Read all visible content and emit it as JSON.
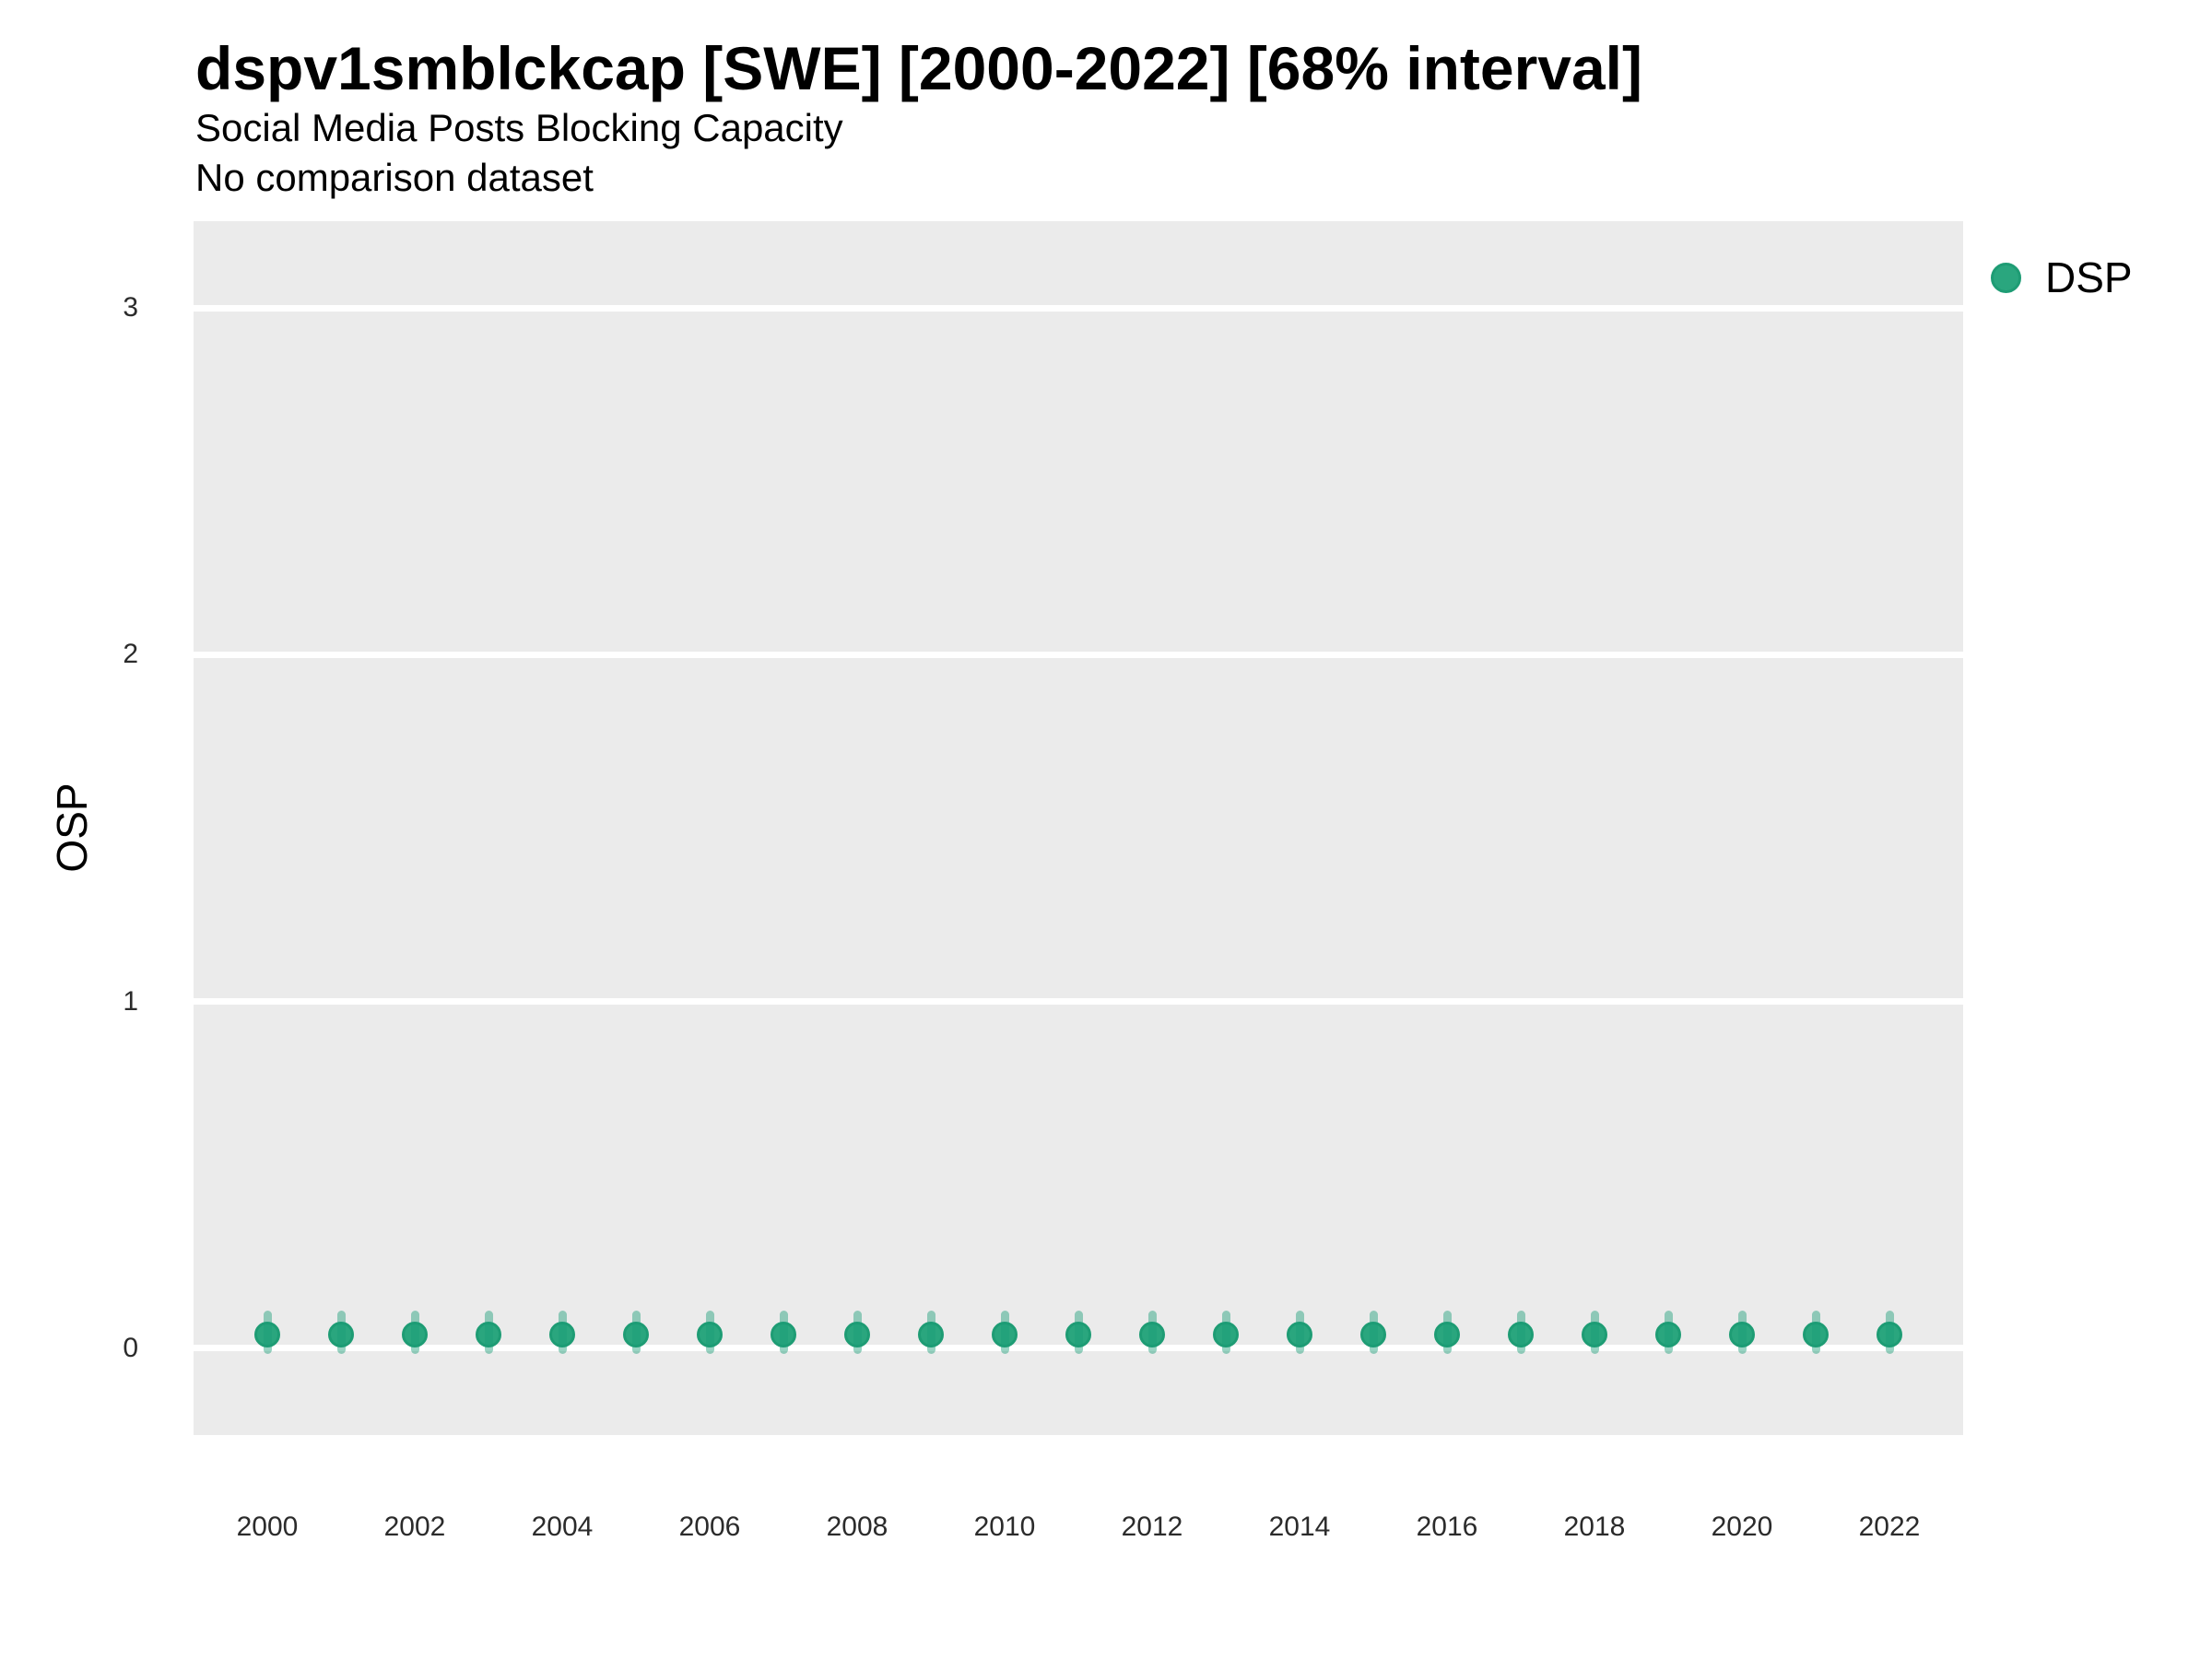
{
  "header": {
    "title": "dspv1smblckcap [SWE] [2000-2022] [68% interval]",
    "subtitle": "Social Media Posts Blocking Capacity",
    "note": "No comparison dataset"
  },
  "y_axis": {
    "title": "OSP",
    "tick_labels": [
      "0",
      "1",
      "2",
      "3"
    ],
    "tick_values": [
      0,
      1,
      2,
      3
    ]
  },
  "x_axis": {
    "tick_labels": [
      "2000",
      "2002",
      "2004",
      "2006",
      "2008",
      "2010",
      "2012",
      "2014",
      "2016",
      "2018",
      "2020",
      "2022"
    ],
    "tick_values": [
      2000,
      2002,
      2004,
      2006,
      2008,
      2010,
      2012,
      2014,
      2016,
      2018,
      2020,
      2022
    ]
  },
  "legend": {
    "items": [
      {
        "label": "DSP",
        "color": "#2AA67E",
        "border_color": "#1E9C74",
        "marker": "circle-icon"
      }
    ]
  },
  "colors": {
    "panel_background": "#EBEBEB",
    "gridline": "#FFFFFF",
    "point_fill": "#2AA67E",
    "point_border": "#1E9C74",
    "interval_bar": "rgba(27,158,119,0.45)",
    "axis_text": "#2b2b2b",
    "text": "#000000"
  },
  "chart_data": {
    "type": "scatter",
    "title": "dspv1smblckcap [SWE] [2000-2022] [68% interval]",
    "subtitle": "Social Media Posts Blocking Capacity",
    "note": "No comparison dataset",
    "xlabel": "",
    "ylabel": "OSP",
    "interval_label": "68% interval",
    "xlim": [
      1999,
      2023
    ],
    "ylim": [
      -0.25,
      3.25
    ],
    "grid": "major horizontal white lines on grey panel",
    "legend_position": "right-top",
    "x": [
      2000,
      2001,
      2002,
      2003,
      2004,
      2005,
      2006,
      2007,
      2008,
      2009,
      2010,
      2011,
      2012,
      2013,
      2014,
      2015,
      2016,
      2017,
      2018,
      2019,
      2020,
      2021,
      2022
    ],
    "series": [
      {
        "name": "DSP",
        "values": [
          0.04,
          0.04,
          0.04,
          0.04,
          0.04,
          0.04,
          0.04,
          0.04,
          0.04,
          0.04,
          0.04,
          0.04,
          0.04,
          0.04,
          0.04,
          0.04,
          0.04,
          0.04,
          0.04,
          0.04,
          0.04,
          0.04,
          0.04
        ],
        "interval_low": [
          0.0,
          0.0,
          0.0,
          0.0,
          0.0,
          0.0,
          0.0,
          0.0,
          0.0,
          0.0,
          0.0,
          0.0,
          0.0,
          0.0,
          0.0,
          0.0,
          0.0,
          0.0,
          0.0,
          0.0,
          0.0,
          0.0,
          0.0
        ],
        "interval_high": [
          0.1,
          0.1,
          0.1,
          0.1,
          0.1,
          0.1,
          0.1,
          0.1,
          0.1,
          0.1,
          0.1,
          0.1,
          0.1,
          0.1,
          0.1,
          0.1,
          0.1,
          0.1,
          0.1,
          0.1,
          0.1,
          0.1,
          0.1
        ]
      }
    ]
  }
}
